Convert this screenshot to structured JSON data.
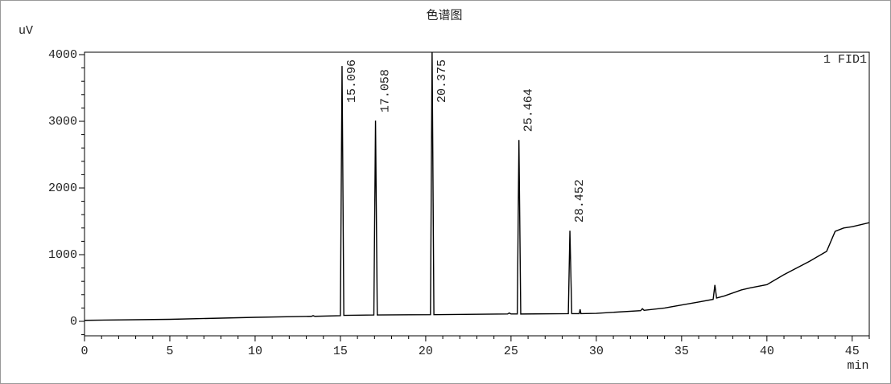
{
  "chart_data": {
    "type": "line",
    "title": "色谱图",
    "y_label": "uV",
    "x_label": "min",
    "x": [
      0,
      5,
      10,
      13.3,
      13.4,
      13.5,
      15.0,
      15.096,
      15.2,
      16.96,
      17.058,
      17.16,
      20.28,
      20.375,
      20.48,
      24.8,
      24.9,
      25.0,
      25.37,
      25.464,
      25.57,
      28.36,
      28.452,
      28.56,
      29.0,
      29.05,
      29.1,
      30,
      32.6,
      32.7,
      32.8,
      34,
      36,
      36.85,
      36.95,
      37.05,
      37.5,
      38.5,
      39,
      40,
      41,
      42.5,
      43.5,
      44,
      44.5,
      45,
      45.5,
      46
    ],
    "series": [
      {
        "name": "1 FID1",
        "color": "#000000",
        "values": [
          15,
          30,
          60,
          75,
          85,
          75,
          85,
          3830,
          90,
          95,
          3010,
          95,
          100,
          4060,
          100,
          110,
          125,
          110,
          110,
          2720,
          110,
          115,
          1360,
          115,
          115,
          180,
          115,
          120,
          160,
          190,
          165,
          200,
          290,
          330,
          545,
          350,
          380,
          470,
          500,
          550,
          700,
          900,
          1050,
          1350,
          1400,
          1420,
          1450,
          1480
        ]
      }
    ],
    "peak_labels": [
      15.096,
      17.058,
      20.375,
      25.464,
      28.452
    ],
    "xlim": [
      0,
      46
    ],
    "ylim": [
      -217,
      4036
    ],
    "xticks": [
      0,
      5,
      10,
      15,
      20,
      25,
      30,
      35,
      40,
      45
    ],
    "yticks": [
      0,
      1000,
      2000,
      3000,
      4000
    ],
    "xminorticks": [
      1,
      2,
      3,
      4,
      6,
      7,
      8,
      9,
      11,
      12,
      13,
      14,
      16,
      17,
      18,
      19,
      21,
      22,
      23,
      24,
      26,
      27,
      28,
      29,
      31,
      32,
      33,
      34,
      36,
      37,
      38,
      39,
      41,
      42,
      43,
      44,
      46
    ],
    "yminorticks": [
      -200,
      200,
      400,
      600,
      800,
      1200,
      1400,
      1600,
      1800,
      2200,
      2400,
      2600,
      2800,
      3200,
      3400,
      3600,
      3800
    ]
  }
}
